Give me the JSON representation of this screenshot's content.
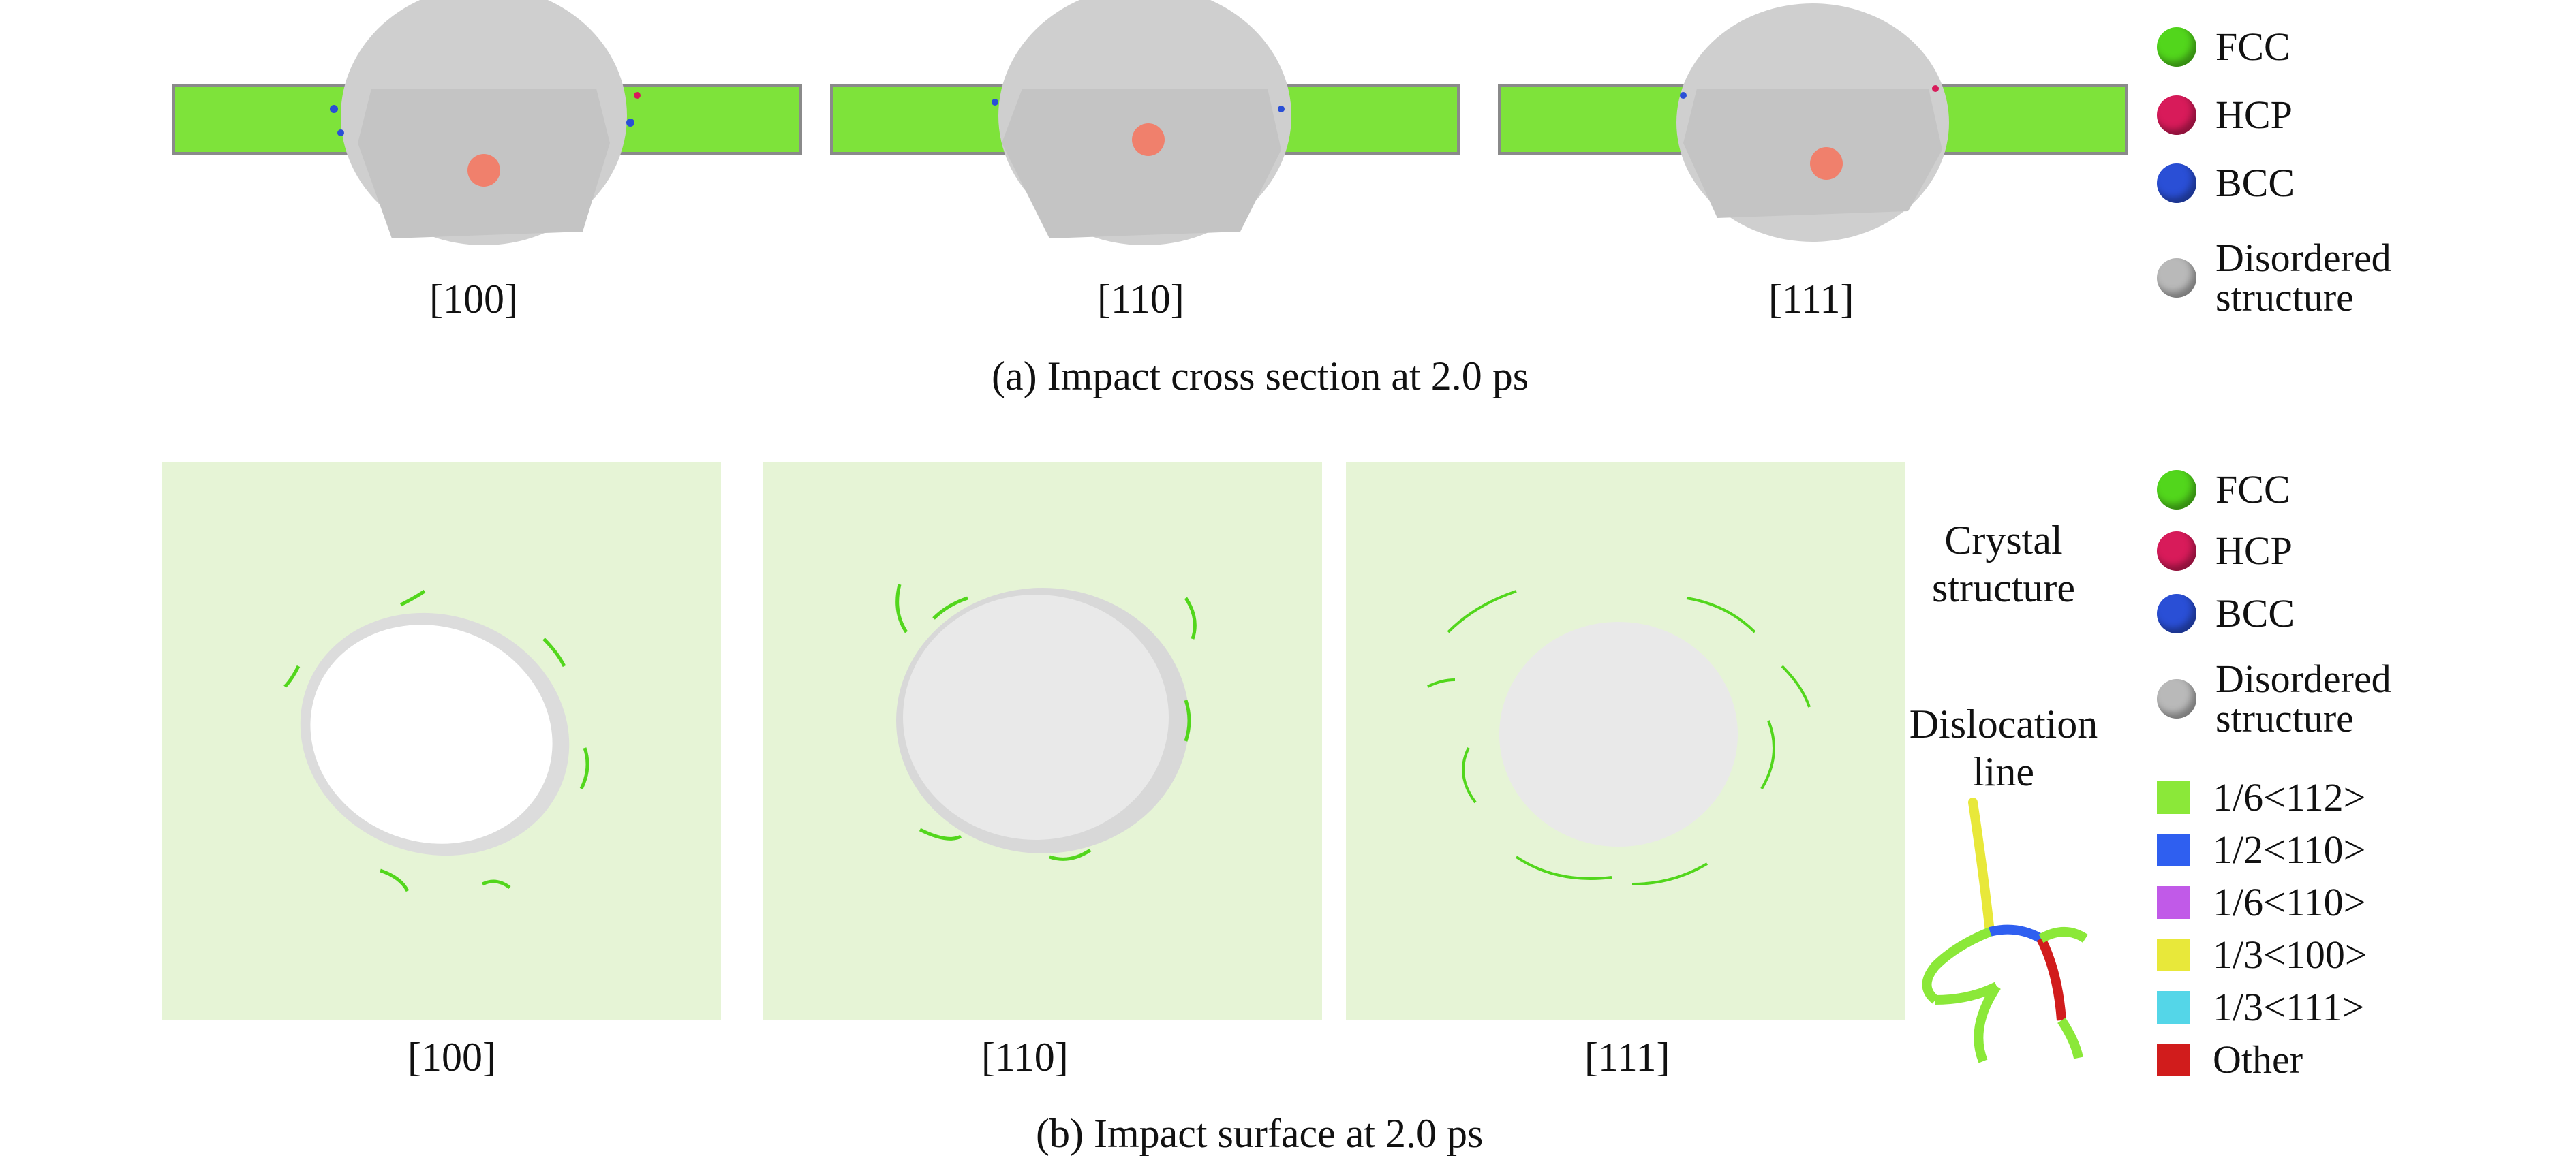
{
  "panel_a": {
    "caption": "(a) Impact cross section at 2.0 ps",
    "orientations": [
      "[100]",
      "[110]",
      "[111]"
    ]
  },
  "panel_b": {
    "caption": "(b) Impact surface at 2.0 ps",
    "orientations": [
      "[100]",
      "[110]",
      "[111]"
    ],
    "side_labels": {
      "crystal": "Crystal structure",
      "dislocation": "Dislocation line"
    }
  },
  "legend_structure": [
    {
      "label": "FCC",
      "color": "#52d61c"
    },
    {
      "label": "HCP",
      "color": "#d81b5a"
    },
    {
      "label": "BCC",
      "color": "#2a4fd6"
    },
    {
      "label": "Disordered structure",
      "color": "#b9b9b9"
    }
  ],
  "legend_dislocation": [
    {
      "label": "1/6<112>",
      "color": "#8be839"
    },
    {
      "label": "1/2<110>",
      "color": "#2f5ff0"
    },
    {
      "label": "1/6<110>",
      "color": "#c15ae8"
    },
    {
      "label": "1/3<100>",
      "color": "#e8e83a"
    },
    {
      "label": "1/3<111>",
      "color": "#54d6e8"
    },
    {
      "label": "Other",
      "color": "#d11c1c"
    }
  ],
  "colors": {
    "fcc_bar": "#7ee33a",
    "surface_bg": "#e6f4d6",
    "disordered": "#c8c8c8",
    "projectile": "#f0806c"
  }
}
